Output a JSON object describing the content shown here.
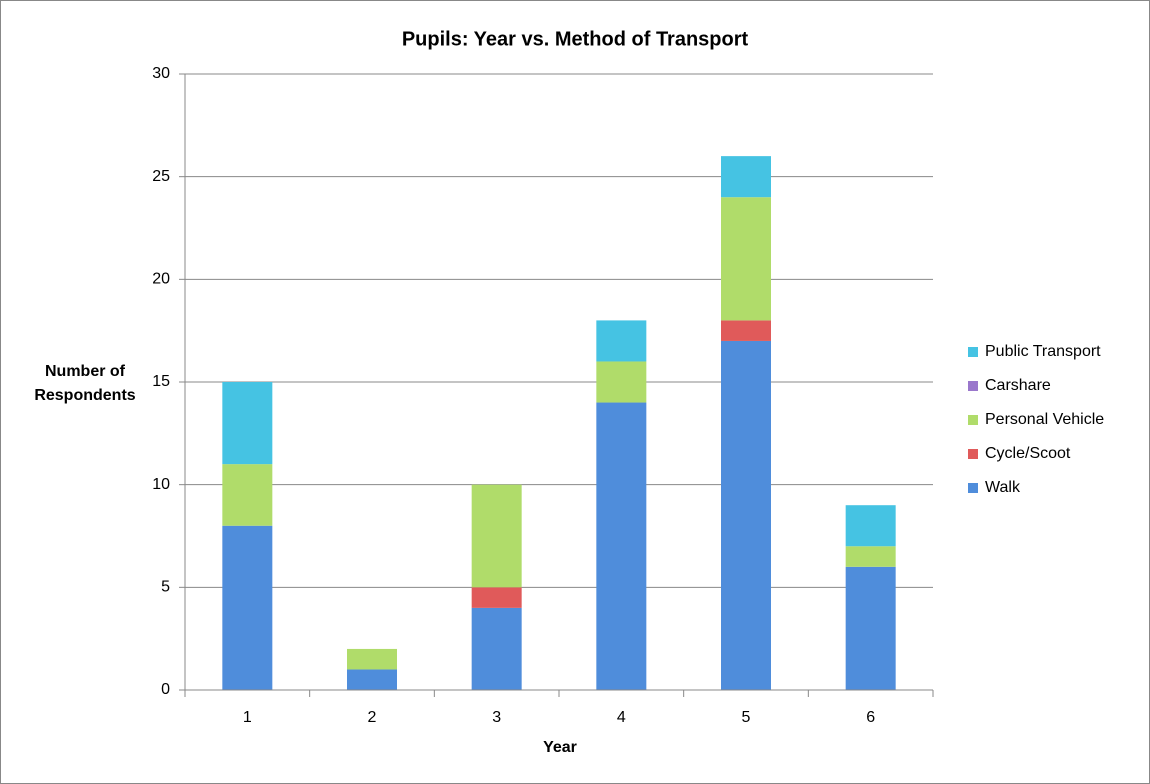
{
  "chart_data": {
    "type": "stacked_bar",
    "title": "Pupils: Year vs. Method of Transport",
    "xlabel": "Year",
    "ylabel": "Number of Respondents",
    "categories": [
      "1",
      "2",
      "3",
      "4",
      "5",
      "6"
    ],
    "series": [
      {
        "name": "Walk",
        "color": "#4f8ddb",
        "values": [
          8,
          1,
          4,
          14,
          17,
          6
        ]
      },
      {
        "name": "Cycle/Scoot",
        "color": "#e05a5a",
        "values": [
          0,
          0,
          1,
          0,
          1,
          0
        ]
      },
      {
        "name": "Personal Vehicle",
        "color": "#b0dc6a",
        "values": [
          3,
          1,
          5,
          2,
          6,
          1
        ]
      },
      {
        "name": "Carshare",
        "color": "#9a77cc",
        "values": [
          0,
          0,
          0,
          0,
          0,
          0
        ]
      },
      {
        "name": "Public Transport",
        "color": "#45c3e3",
        "values": [
          4,
          0,
          0,
          2,
          2,
          2
        ]
      }
    ],
    "ylim": [
      0,
      30
    ],
    "yticks": [
      0,
      5,
      10,
      15,
      20,
      25,
      30
    ],
    "grid": true,
    "legend": "right"
  }
}
